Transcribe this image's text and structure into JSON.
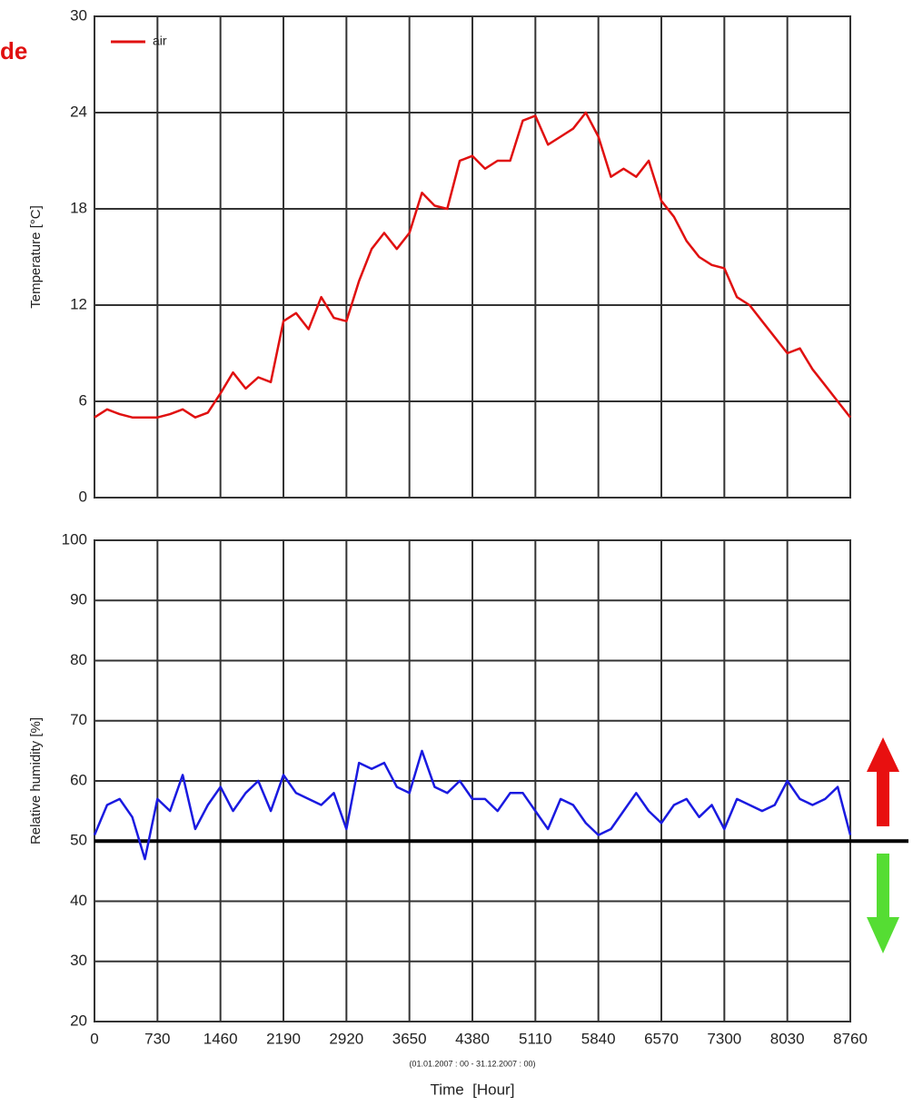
{
  "chart_data": [
    {
      "type": "line",
      "annotation": "de",
      "y_label": "Temperature [°C]",
      "x": [
        0,
        146,
        292,
        438,
        584,
        730,
        876,
        1022,
        1168,
        1314,
        1460,
        1606,
        1752,
        1898,
        2044,
        2190,
        2336,
        2482,
        2628,
        2774,
        2920,
        3066,
        3212,
        3358,
        3504,
        3650,
        3796,
        3942,
        4088,
        4234,
        4380,
        4526,
        4672,
        4818,
        4964,
        5110,
        5256,
        5402,
        5548,
        5694,
        5840,
        5986,
        6132,
        6278,
        6424,
        6570,
        6716,
        6862,
        7008,
        7154,
        7300,
        7446,
        7592,
        7738,
        7884,
        8030,
        8176,
        8322,
        8468,
        8614,
        8760
      ],
      "series": [
        {
          "name": "air",
          "color": "#e01010",
          "values": [
            5.0,
            5.5,
            5.2,
            5.0,
            5.0,
            5.0,
            5.2,
            5.5,
            5.0,
            5.3,
            6.5,
            7.8,
            6.8,
            7.5,
            7.2,
            11.0,
            11.5,
            10.5,
            12.5,
            11.2,
            11.0,
            13.5,
            15.5,
            16.5,
            15.5,
            16.5,
            19.0,
            18.2,
            18.0,
            21.0,
            21.3,
            20.5,
            21.0,
            21.0,
            23.5,
            23.8,
            22.0,
            22.5,
            23.0,
            24.0,
            22.5,
            20.0,
            20.5,
            20.0,
            21.0,
            18.5,
            17.5,
            16.0,
            15.0,
            14.5,
            14.3,
            12.5,
            12.0,
            11.0,
            10.0,
            9.0,
            9.3,
            8.0,
            7.0,
            6.0,
            5.0
          ]
        }
      ],
      "xlim": [
        0,
        8760
      ],
      "xticks": [
        0,
        730,
        1460,
        2190,
        2920,
        3650,
        4380,
        5110,
        5840,
        6570,
        7300,
        8030,
        8760
      ],
      "ylim": [
        0,
        30
      ],
      "yticks": [
        0,
        6,
        12,
        18,
        24,
        30
      ],
      "grid": true,
      "legend": "top-left"
    },
    {
      "type": "line",
      "y_label": "Relative humidity [%]",
      "x_label": "Time  [Hour]",
      "x_note": "(01.01.2007 : 00 - 31.12.2007 : 00)",
      "x": [
        0,
        146,
        292,
        438,
        584,
        730,
        876,
        1022,
        1168,
        1314,
        1460,
        1606,
        1752,
        1898,
        2044,
        2190,
        2336,
        2482,
        2628,
        2774,
        2920,
        3066,
        3212,
        3358,
        3504,
        3650,
        3796,
        3942,
        4088,
        4234,
        4380,
        4526,
        4672,
        4818,
        4964,
        5110,
        5256,
        5402,
        5548,
        5694,
        5840,
        5986,
        6132,
        6278,
        6424,
        6570,
        6716,
        6862,
        7008,
        7154,
        7300,
        7446,
        7592,
        7738,
        7884,
        8030,
        8176,
        8322,
        8468,
        8614,
        8760
      ],
      "series": [
        {
          "color": "#1a1ae0",
          "values": [
            51,
            56,
            57,
            54,
            47,
            57,
            55,
            61,
            52,
            56,
            59,
            55,
            58,
            60,
            55,
            61,
            58,
            57,
            56,
            58,
            52,
            63,
            62,
            63,
            59,
            58,
            65,
            59,
            58,
            60,
            57,
            57,
            55,
            58,
            58,
            55,
            52,
            57,
            56,
            53,
            51,
            52,
            55,
            58,
            55,
            53,
            56,
            57,
            54,
            56,
            52,
            57,
            56,
            55,
            56,
            60,
            57,
            56,
            57,
            59,
            51
          ]
        }
      ],
      "reference_line": 50,
      "xlim": [
        0,
        8760
      ],
      "xticks": [
        0,
        730,
        1460,
        2190,
        2920,
        3650,
        4380,
        5110,
        5840,
        6570,
        7300,
        8030,
        8760
      ],
      "ylim": [
        20,
        100
      ],
      "yticks": [
        20,
        30,
        40,
        50,
        60,
        70,
        80,
        90,
        100
      ],
      "grid": true
    }
  ]
}
